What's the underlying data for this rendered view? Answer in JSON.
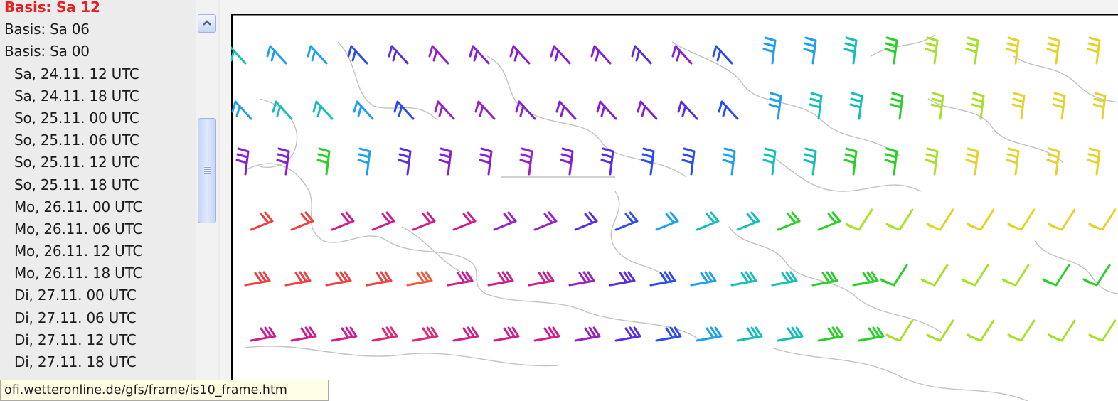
{
  "run_list": {
    "runs": [
      {
        "label": "Basis: Sa 12",
        "active": true
      },
      {
        "label": "Basis: Sa 06",
        "active": false
      },
      {
        "label": "Basis: Sa 00",
        "active": false
      }
    ],
    "forecast_times": [
      "Sa, 24.11. 12 UTC",
      "Sa, 24.11. 18 UTC",
      "So, 25.11. 00 UTC",
      "So, 25.11. 06 UTC",
      "So, 25.11. 12 UTC",
      "So, 25.11. 18 UTC",
      "Mo, 26.11. 00 UTC",
      "Mo, 26.11. 06 UTC",
      "Mo, 26.11. 12 UTC",
      "Mo, 26.11. 18 UTC",
      "Di, 27.11. 00 UTC",
      "Di, 27.11. 06 UTC",
      "Di, 27.11. 12 UTC",
      "Di, 27.11. 18 UTC"
    ]
  },
  "status_bar": {
    "url": "ofi.wetteronline.de/gfs/frame/is10_frame.htm"
  },
  "map": {
    "type": "wind-barb-map",
    "barb_rows": [
      [
        "teal",
        "sky",
        "sky",
        "blue",
        "indigo",
        "purple",
        "violet",
        "violet",
        "violet",
        "violet",
        "indigo",
        "violet",
        "blue",
        "sky",
        "sky",
        "teal",
        "green",
        "lime",
        "lime",
        "yellow",
        "yellow",
        "yellow"
      ],
      [
        "sky",
        "teal",
        "teal",
        "sky",
        "blue",
        "purple",
        "purple",
        "violet",
        "violet",
        "violet",
        "violet",
        "indigo",
        "blue",
        "sky",
        "teal",
        "teal",
        "green",
        "lime",
        "lime",
        "yellow",
        "yellow",
        "yellow"
      ],
      [
        "violet",
        "violet",
        "green",
        "sky",
        "indigo",
        "violet",
        "violet",
        "purple",
        "violet",
        "indigo",
        "blue",
        "blue",
        "sky",
        "teal",
        "teal",
        "green",
        "green",
        "lime",
        "yellow",
        "yellow",
        "yellow",
        "yellow"
      ],
      [
        "red",
        "red",
        "magenta",
        "magenta",
        "magenta",
        "magenta",
        "purple",
        "purple",
        "indigo",
        "blue",
        "sky",
        "teal",
        "teal",
        "green",
        "green",
        "lime",
        "lime",
        "yellow",
        "yellow",
        "yellow",
        "yellow",
        "yellow"
      ],
      [
        "red",
        "red",
        "red",
        "red",
        "coral",
        "magenta",
        "magenta",
        "magenta",
        "purple",
        "indigo",
        "blue",
        "sky",
        "teal",
        "teal",
        "green",
        "green",
        "green",
        "lime",
        "lime",
        "lime",
        "green",
        "green"
      ],
      [
        "magenta",
        "magenta",
        "magenta",
        "crimson",
        "crimson",
        "magenta",
        "magenta",
        "magenta",
        "purple",
        "indigo",
        "blue",
        "sky",
        "teal",
        "teal",
        "green",
        "green",
        "lime",
        "lime",
        "lime",
        "lime",
        "lime",
        "lime"
      ]
    ],
    "colors": {
      "red": "#f04040",
      "coral": "#f25a3c",
      "crimson": "#e02878",
      "magenta": "#d01e8c",
      "purple": "#9a20c8",
      "violet": "#8a1ed6",
      "indigo": "#5a2ce6",
      "blue": "#2a4cf0",
      "sky": "#1ea0f0",
      "teal": "#14c0b4",
      "green": "#28d028",
      "lime": "#a8e02a",
      "yellow": "#e6d22c",
      "coast": "#c2c2c2",
      "frame": "#000000"
    }
  },
  "icons": {
    "scroll_up": "chevron-up-icon",
    "scroll_grip": "grip-icon"
  }
}
